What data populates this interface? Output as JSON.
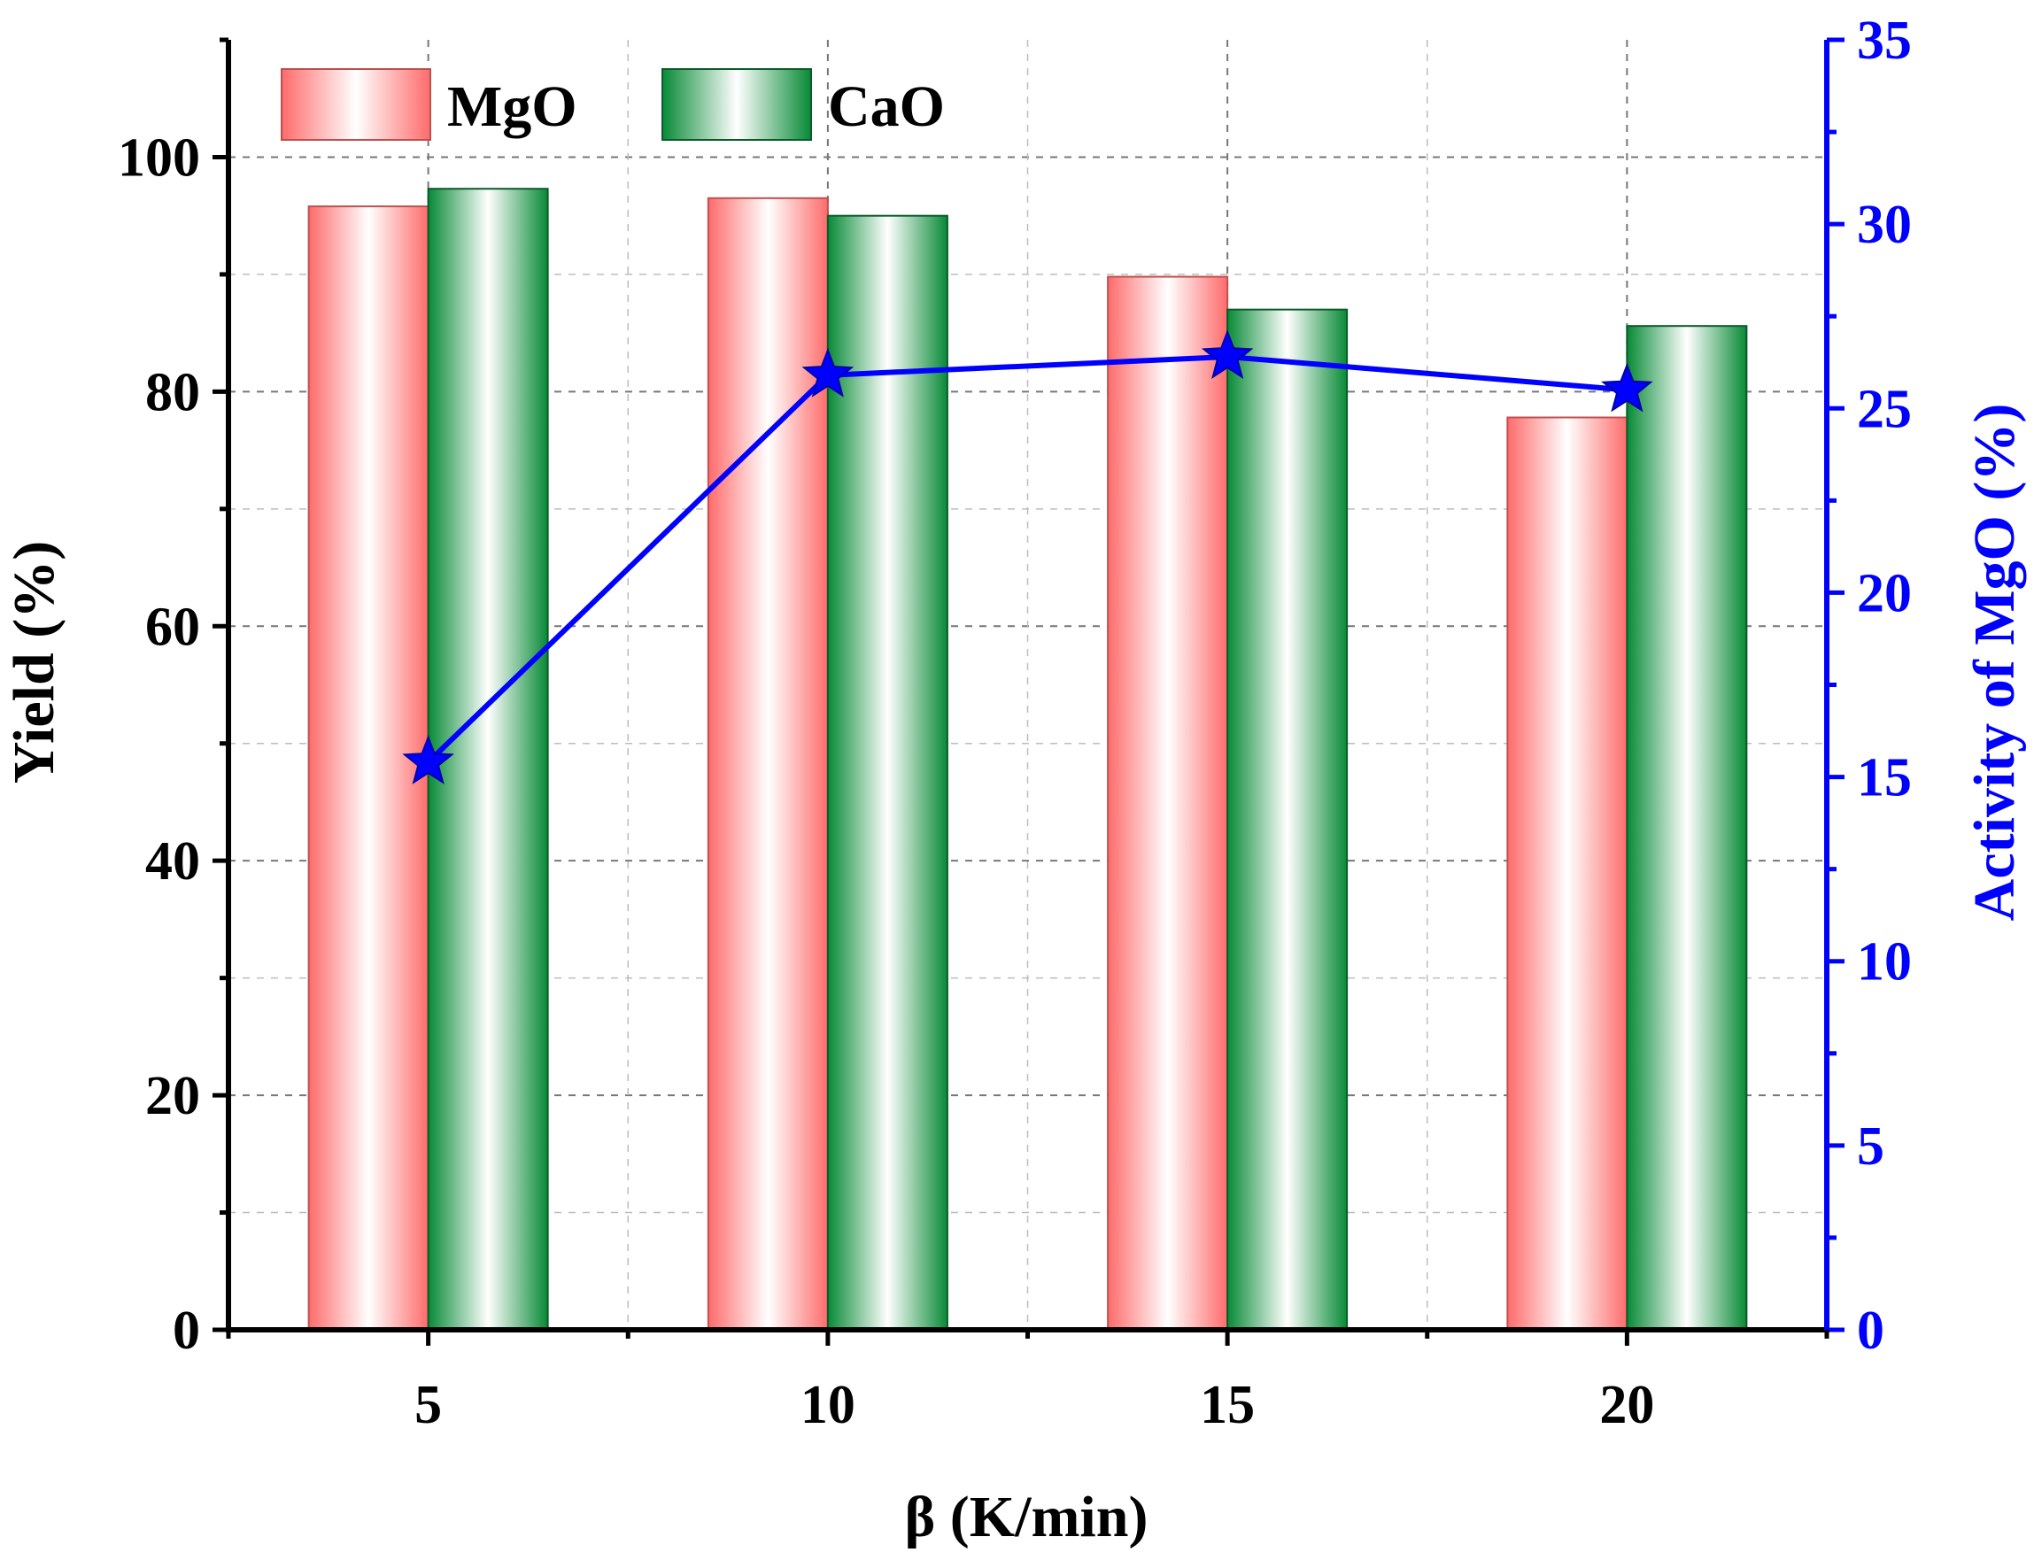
{
  "chart_data": {
    "type": "bar",
    "categories": [
      "5",
      "10",
      "15",
      "20"
    ],
    "x": [
      5,
      10,
      15,
      20
    ],
    "series": [
      {
        "name": "MgO",
        "kind": "bar",
        "axis": "left",
        "values": [
          95.8,
          96.5,
          89.8,
          77.8
        ]
      },
      {
        "name": "CaO",
        "kind": "bar",
        "axis": "left",
        "values": [
          97.3,
          95.0,
          87.0,
          85.6
        ]
      },
      {
        "name": "Activity of MgO",
        "kind": "line",
        "marker": "star",
        "axis": "right",
        "values": [
          15.4,
          25.9,
          26.4,
          25.5
        ]
      }
    ],
    "xlabel": "β (K/min)",
    "ylabel": "Yield (%)",
    "y2label": "Activity of MgO (%)",
    "xlim": [
      2.5,
      22.5
    ],
    "ylim": [
      0,
      110
    ],
    "y2lim": [
      0,
      35
    ],
    "xticks": [
      5,
      10,
      15,
      20
    ],
    "yticks": [
      0,
      20,
      40,
      60,
      80,
      100
    ],
    "y2ticks": [
      0,
      5,
      10,
      15,
      20,
      25,
      30,
      35
    ],
    "legend": {
      "entries": [
        "MgO",
        "CaO"
      ],
      "position": "top-left"
    },
    "grid": true
  },
  "colors": {
    "mgo": "#ff6f6f",
    "cao": "#0a8a3a",
    "activity": "#0000ff",
    "axis": "#000000",
    "grid": "#b0b0b0"
  }
}
